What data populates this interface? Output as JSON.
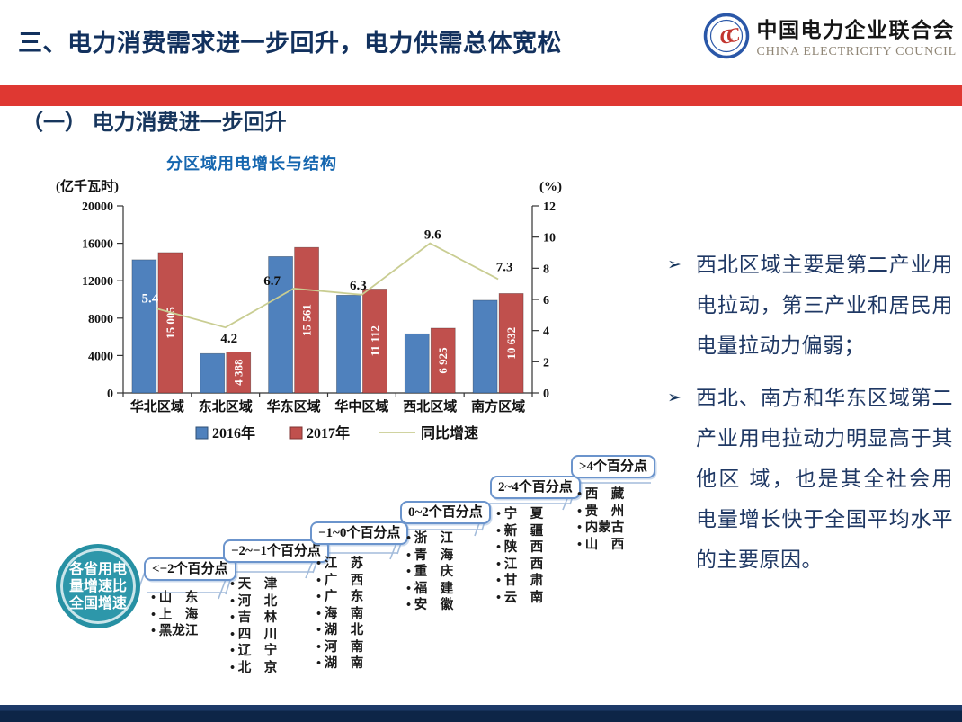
{
  "header": {
    "title": "三、电力消费需求进一步回升，电力供需总体宽松",
    "logo_cn": "中国电力企业联合会",
    "logo_en": "CHINA ELECTRICITY COUNCIL"
  },
  "section": {
    "title": "（一）  电力消费进一步回升"
  },
  "chart_data": {
    "type": "bar+line",
    "title": "分区域用电增长与结构",
    "unit_left": "(亿千瓦时)",
    "unit_right": "(%)",
    "categories": [
      "华北区域",
      "东北区域",
      "华东区域",
      "华中区域",
      "西北区域",
      "南方区域"
    ],
    "series": [
      {
        "name": "2016年",
        "type": "bar",
        "axis": "left",
        "color": "#4f81bd",
        "values": [
          14240,
          4210,
          14580,
          10450,
          6320,
          9910
        ]
      },
      {
        "name": "2017年",
        "type": "bar",
        "axis": "left",
        "color": "#c0504d",
        "values": [
          15005,
          4388,
          15561,
          11112,
          6925,
          10632
        ],
        "labels": [
          "15 005",
          "4 388",
          "15 561",
          "11 112",
          "6 925",
          "10 632"
        ]
      },
      {
        "name": "同比增速",
        "type": "line",
        "axis": "right",
        "color": "#c9cd92",
        "values": [
          5.4,
          4.2,
          6.7,
          6.3,
          9.6,
          7.3
        ],
        "labels": [
          "5.4",
          "4.2",
          "6.7",
          "6.3",
          "9.6",
          "7.3"
        ]
      }
    ],
    "ylim_left": [
      0,
      20000
    ],
    "yticks_left": [
      "0",
      "4000",
      "8000",
      "12000",
      "16000",
      "20000"
    ],
    "ylim_right": [
      0,
      12
    ],
    "yticks_right": [
      "0",
      "2",
      "4",
      "6",
      "8",
      "10",
      "12"
    ],
    "legend": [
      "2016年",
      "2017年",
      "同比增速"
    ],
    "legend_position": "bottom",
    "grid": false
  },
  "insights": {
    "marker": "➢",
    "items": [
      "西北区域主要是第二产业用电拉动，第三产业和居民用电量拉动力偏弱；",
      "西北、南方和华东区域第二产业用电拉动力明显高于其他区 域，也是其全社会用电量增长快于全国平均水平的主要原因。"
    ]
  },
  "staircase": {
    "circle_text": "各省用电\n量增速比\n全国增速",
    "groups": [
      {
        "range": "<−2个百分点",
        "provinces": [
          "山　东",
          "上　海",
          "黑龙江"
        ]
      },
      {
        "range": "−2~−1个百分点",
        "provinces": [
          "天　津",
          "河　北",
          "吉　林",
          "四　川",
          "辽　宁",
          "北　京"
        ]
      },
      {
        "range": "−1~0个百分点",
        "provinces": [
          "江　苏",
          "广　西",
          "广　东",
          "海　南",
          "湖　北",
          "河　南",
          "湖　南"
        ]
      },
      {
        "range": "0~2个百分点",
        "provinces": [
          "浙　江",
          "青　海",
          "重　庆",
          "福　建",
          "安　徽"
        ]
      },
      {
        "range": "2~4个百分点",
        "provinces": [
          "宁　夏",
          "新　疆",
          "陕　西",
          "江　西",
          "甘　肃",
          "云　南"
        ]
      },
      {
        "range": ">4个百分点",
        "provinces": [
          "西　藏",
          "贵　州",
          "内蒙古",
          "山　西"
        ]
      }
    ]
  }
}
